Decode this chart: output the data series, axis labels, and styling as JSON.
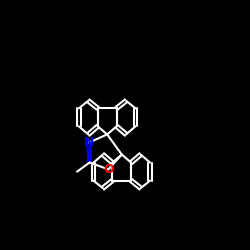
{
  "bg": "#000000",
  "bond_color": "#ffffff",
  "N_color": "#0000ff",
  "O_color": "#ff0000",
  "lw": 1.5,
  "figsize": [
    2.5,
    2.5
  ],
  "dpi": 100,
  "xlim": [
    -2.8,
    2.8
  ],
  "ylim": [
    -2.8,
    2.8
  ]
}
